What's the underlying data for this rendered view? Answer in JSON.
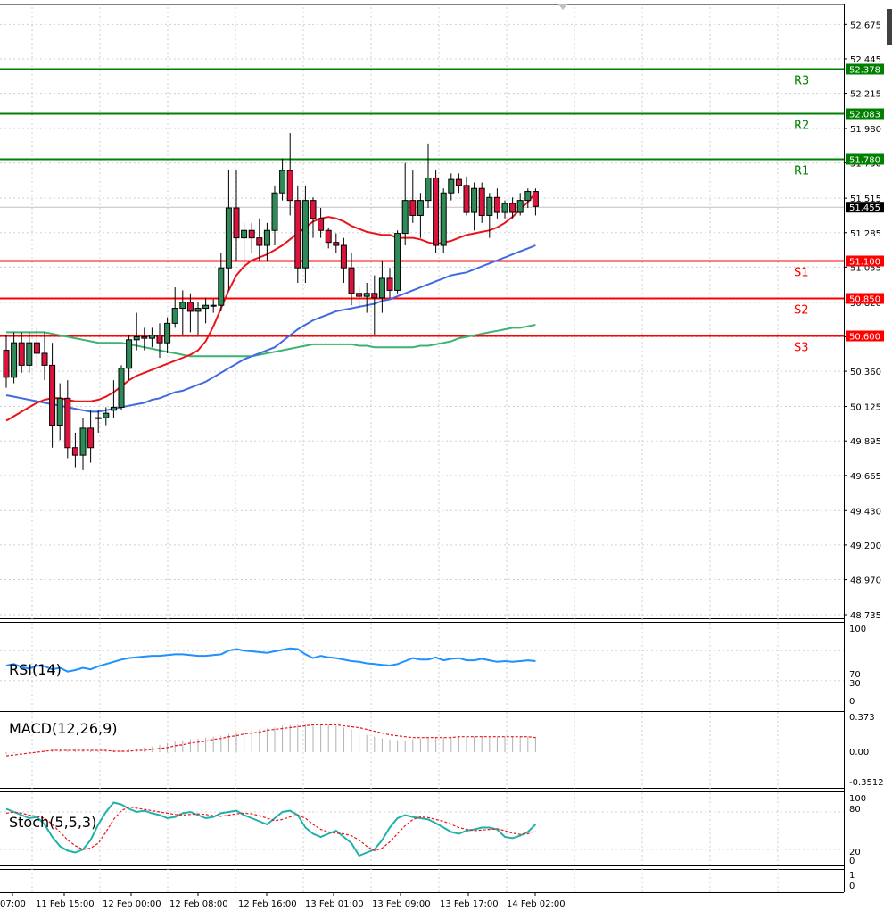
{
  "chart_data": {
    "type": "candlestick",
    "ylim": [
      48.735,
      52.79
    ],
    "y_ticks": [
      "52.675",
      "52.445",
      "52.215",
      "51.980",
      "51.750",
      "51.515",
      "51.285",
      "51.055",
      "50.820",
      "50.590",
      "50.360",
      "50.125",
      "49.895",
      "49.665",
      "49.430",
      "49.200",
      "48.970",
      "48.735"
    ],
    "x_ticks": [
      "07:00",
      "11 Feb 15:00",
      "12 Feb 00:00",
      "12 Feb 08:00",
      "12 Feb 16:00",
      "13 Feb 01:00",
      "13 Feb 09:00",
      "13 Feb 17:00",
      "14 Feb 02:00"
    ],
    "current_price": "51.455",
    "levels": [
      {
        "label": "R3",
        "value": 52.378,
        "value_text": "52.378",
        "color": "#008000"
      },
      {
        "label": "R2",
        "value": 52.083,
        "value_text": "52.083",
        "color": "#008000"
      },
      {
        "label": "R1",
        "value": 51.78,
        "value_text": "51.780",
        "color": "#008000"
      },
      {
        "label": "S1",
        "value": 51.1,
        "value_text": "51.100",
        "color": "#ff0000"
      },
      {
        "label": "S2",
        "value": 50.85,
        "value_text": "50.850",
        "color": "#ff0000"
      },
      {
        "label": "S3",
        "value": 50.6,
        "value_text": "50.600",
        "color": "#ff0000"
      }
    ],
    "candles": [
      [
        50.5,
        50.6,
        50.25,
        50.32
      ],
      [
        50.32,
        50.62,
        50.28,
        50.55
      ],
      [
        50.55,
        50.62,
        50.35,
        50.4
      ],
      [
        50.4,
        50.62,
        50.35,
        50.55
      ],
      [
        50.55,
        50.65,
        50.38,
        50.48
      ],
      [
        50.48,
        50.62,
        50.3,
        50.4
      ],
      [
        50.4,
        50.55,
        49.85,
        50.0
      ],
      [
        50.0,
        50.28,
        49.9,
        50.18
      ],
      [
        50.18,
        50.3,
        49.78,
        49.85
      ],
      [
        49.85,
        49.95,
        49.72,
        49.8
      ],
      [
        49.8,
        50.05,
        49.7,
        49.98
      ],
      [
        49.98,
        50.1,
        49.75,
        49.85
      ],
      [
        50.05,
        50.1,
        49.95,
        50.05
      ],
      [
        50.05,
        50.12,
        50.0,
        50.08
      ],
      [
        50.1,
        50.3,
        50.05,
        50.12
      ],
      [
        50.12,
        50.4,
        50.1,
        50.38
      ],
      [
        50.38,
        50.6,
        50.3,
        50.57
      ],
      [
        50.57,
        50.75,
        50.5,
        50.59
      ],
      [
        50.59,
        50.65,
        50.5,
        50.58
      ],
      [
        50.58,
        50.65,
        50.52,
        50.6
      ],
      [
        50.6,
        50.68,
        50.45,
        50.55
      ],
      [
        50.55,
        50.72,
        50.48,
        50.68
      ],
      [
        50.68,
        50.92,
        50.65,
        50.78
      ],
      [
        50.78,
        50.9,
        50.6,
        50.82
      ],
      [
        50.82,
        50.88,
        50.62,
        50.76
      ],
      [
        50.76,
        50.82,
        50.6,
        50.78
      ],
      [
        50.78,
        50.85,
        50.68,
        50.8
      ],
      [
        50.8,
        50.84,
        50.75,
        50.8
      ],
      [
        50.8,
        51.15,
        50.76,
        51.05
      ],
      [
        51.05,
        51.7,
        50.9,
        51.45
      ],
      [
        51.45,
        51.7,
        51.1,
        51.25
      ],
      [
        51.25,
        51.35,
        51.05,
        51.3
      ],
      [
        51.3,
        51.35,
        51.15,
        51.25
      ],
      [
        51.25,
        51.38,
        51.1,
        51.2
      ],
      [
        51.2,
        51.35,
        51.1,
        51.3
      ],
      [
        51.3,
        51.6,
        51.2,
        51.55
      ],
      [
        51.55,
        51.78,
        51.5,
        51.7
      ],
      [
        51.7,
        51.95,
        51.4,
        51.5
      ],
      [
        51.5,
        51.6,
        50.95,
        51.05
      ],
      [
        51.05,
        51.6,
        50.95,
        51.5
      ],
      [
        51.5,
        51.52,
        51.25,
        51.38
      ],
      [
        51.38,
        51.45,
        51.25,
        51.3
      ],
      [
        51.3,
        51.32,
        51.18,
        51.22
      ],
      [
        51.22,
        51.28,
        51.15,
        51.2
      ],
      [
        51.2,
        51.25,
        50.95,
        51.05
      ],
      [
        51.05,
        51.15,
        50.8,
        50.88
      ],
      [
        50.88,
        50.92,
        50.78,
        50.86
      ],
      [
        50.86,
        50.95,
        50.75,
        50.88
      ],
      [
        50.88,
        51.0,
        50.6,
        50.85
      ],
      [
        50.85,
        51.1,
        50.75,
        50.98
      ],
      [
        50.98,
        51.05,
        50.85,
        50.9
      ],
      [
        50.9,
        51.3,
        50.88,
        51.28
      ],
      [
        51.28,
        51.75,
        51.2,
        51.5
      ],
      [
        51.5,
        51.7,
        51.35,
        51.4
      ],
      [
        51.4,
        51.55,
        51.25,
        51.5
      ],
      [
        51.5,
        51.88,
        51.45,
        51.65
      ],
      [
        51.65,
        51.7,
        51.15,
        51.2
      ],
      [
        51.2,
        51.58,
        51.15,
        51.55
      ],
      [
        51.55,
        51.68,
        51.5,
        51.64
      ],
      [
        51.64,
        51.68,
        51.55,
        51.6
      ],
      [
        51.6,
        51.66,
        51.4,
        51.42
      ],
      [
        51.42,
        51.62,
        51.3,
        51.58
      ],
      [
        51.58,
        51.62,
        51.35,
        51.4
      ],
      [
        51.4,
        51.55,
        51.25,
        51.52
      ],
      [
        51.52,
        51.58,
        51.38,
        51.42
      ],
      [
        51.42,
        51.5,
        51.38,
        51.48
      ],
      [
        51.48,
        51.52,
        51.38,
        51.42
      ],
      [
        51.42,
        51.55,
        51.4,
        51.5
      ],
      [
        51.5,
        51.58,
        51.45,
        51.56
      ],
      [
        51.56,
        51.58,
        51.4,
        51.46
      ]
    ],
    "ma_red": [
      50.03,
      50.06,
      50.09,
      50.12,
      50.15,
      50.17,
      50.18,
      50.18,
      50.17,
      50.16,
      50.16,
      50.16,
      50.17,
      50.19,
      50.22,
      50.26,
      50.3,
      50.33,
      50.35,
      50.37,
      50.39,
      50.41,
      50.43,
      50.45,
      50.47,
      50.5,
      50.56,
      50.66,
      50.78,
      50.9,
      51.0,
      51.06,
      51.1,
      51.12,
      51.14,
      51.17,
      51.2,
      51.24,
      51.28,
      51.32,
      51.36,
      51.38,
      51.39,
      51.38,
      51.36,
      51.33,
      51.31,
      51.29,
      51.28,
      51.27,
      51.27,
      51.25,
      51.25,
      51.25,
      51.24,
      51.22,
      51.21,
      51.22,
      51.23,
      51.25,
      51.27,
      51.28,
      51.29,
      51.3,
      51.32,
      51.35,
      51.39,
      51.44,
      51.49,
      51.55
    ],
    "ma_blue": [
      50.2,
      50.19,
      50.18,
      50.17,
      50.16,
      50.15,
      50.14,
      50.13,
      50.12,
      50.11,
      50.1,
      50.09,
      50.09,
      50.1,
      50.11,
      50.12,
      50.13,
      50.14,
      50.15,
      50.17,
      50.18,
      50.2,
      50.22,
      50.23,
      50.25,
      50.27,
      50.29,
      50.32,
      50.35,
      50.38,
      50.41,
      50.44,
      50.46,
      50.48,
      50.5,
      50.52,
      50.56,
      50.6,
      50.64,
      50.67,
      50.7,
      50.72,
      50.74,
      50.76,
      50.77,
      50.78,
      50.79,
      50.8,
      50.81,
      50.83,
      50.84,
      50.86,
      50.88,
      50.9,
      50.92,
      50.94,
      50.96,
      50.98,
      51.0,
      51.01,
      51.02,
      51.04,
      51.06,
      51.08,
      51.1,
      51.12,
      51.14,
      51.16,
      51.18,
      51.2
    ],
    "ma_green": [
      50.62,
      50.62,
      50.62,
      50.62,
      50.62,
      50.62,
      50.61,
      50.6,
      50.59,
      50.58,
      50.57,
      50.56,
      50.55,
      50.55,
      50.55,
      50.55,
      50.54,
      50.53,
      50.52,
      50.51,
      50.5,
      50.49,
      50.48,
      50.47,
      50.46,
      50.46,
      50.46,
      50.46,
      50.46,
      50.46,
      50.46,
      50.46,
      50.46,
      50.47,
      50.48,
      50.49,
      50.5,
      50.51,
      50.52,
      50.53,
      50.54,
      50.54,
      50.54,
      50.54,
      50.54,
      50.54,
      50.53,
      50.53,
      50.52,
      50.52,
      50.52,
      50.52,
      50.52,
      50.52,
      50.53,
      50.53,
      50.54,
      50.55,
      50.56,
      50.58,
      50.59,
      50.6,
      50.61,
      50.62,
      50.63,
      50.64,
      50.65,
      50.65,
      50.66,
      50.67
    ],
    "rsi": {
      "label": "RSI(14)",
      "ticks": [
        "100",
        "70",
        "30",
        "0"
      ],
      "values": [
        50,
        52,
        48,
        46,
        50,
        49,
        45,
        47,
        42,
        44,
        47,
        45,
        49,
        52,
        55,
        58,
        60,
        61,
        62,
        63,
        63,
        64,
        65,
        65,
        64,
        63,
        63,
        64,
        65,
        70,
        72,
        70,
        69,
        68,
        67,
        69,
        71,
        73,
        72,
        65,
        60,
        63,
        61,
        60,
        58,
        56,
        55,
        53,
        52,
        51,
        50,
        52,
        56,
        60,
        58,
        58,
        61,
        57,
        59,
        60,
        57,
        57,
        59,
        57,
        55,
        56,
        55,
        56,
        57,
        56
      ]
    },
    "macd": {
      "label": "MACD(12,26,9)",
      "ticks": [
        "0.373",
        "0.00",
        "-0.3512"
      ],
      "histogram": [
        -0.02,
        -0.01,
        0.0,
        0.01,
        0.01,
        0.02,
        0.02,
        0.03,
        0.03,
        0.03,
        0.03,
        0.02,
        0.02,
        0.02,
        0.02,
        0.02,
        0.03,
        0.04,
        0.05,
        0.06,
        0.08,
        0.1,
        0.12,
        0.13,
        0.14,
        0.15,
        0.16,
        0.17,
        0.18,
        0.2,
        0.22,
        0.23,
        0.24,
        0.25,
        0.26,
        0.27,
        0.29,
        0.3,
        0.31,
        0.31,
        0.31,
        0.31,
        0.3,
        0.29,
        0.27,
        0.25,
        0.22,
        0.19,
        0.17,
        0.15,
        0.14,
        0.13,
        0.13,
        0.14,
        0.15,
        0.16,
        0.16,
        0.16,
        0.17,
        0.17,
        0.17,
        0.17,
        0.17,
        0.17,
        0.17,
        0.17,
        0.17,
        0.17,
        0.17,
        0.17
      ],
      "signal": [
        -0.04,
        -0.03,
        -0.02,
        -0.01,
        0.0,
        0.01,
        0.02,
        0.02,
        0.02,
        0.02,
        0.02,
        0.02,
        0.02,
        0.02,
        0.01,
        0.01,
        0.01,
        0.02,
        0.02,
        0.03,
        0.04,
        0.05,
        0.07,
        0.08,
        0.1,
        0.11,
        0.12,
        0.14,
        0.15,
        0.17,
        0.18,
        0.2,
        0.21,
        0.22,
        0.24,
        0.25,
        0.26,
        0.27,
        0.28,
        0.29,
        0.3,
        0.3,
        0.3,
        0.3,
        0.29,
        0.28,
        0.27,
        0.25,
        0.23,
        0.21,
        0.19,
        0.18,
        0.17,
        0.16,
        0.16,
        0.16,
        0.16,
        0.16,
        0.16,
        0.17,
        0.17,
        0.17,
        0.17,
        0.17,
        0.17,
        0.17,
        0.17,
        0.17,
        0.17,
        0.16
      ]
    },
    "stoch": {
      "label": "Stoch(5,5,3)",
      "ticks": [
        "100",
        "80",
        "20",
        "0"
      ],
      "main": [
        85,
        80,
        75,
        70,
        72,
        60,
        40,
        25,
        18,
        15,
        20,
        35,
        60,
        80,
        95,
        92,
        85,
        80,
        82,
        78,
        75,
        70,
        72,
        78,
        80,
        75,
        70,
        72,
        78,
        80,
        82,
        75,
        70,
        65,
        60,
        70,
        80,
        82,
        75,
        55,
        45,
        40,
        45,
        50,
        40,
        30,
        10,
        15,
        20,
        35,
        55,
        70,
        75,
        72,
        70,
        68,
        62,
        55,
        48,
        45,
        50,
        52,
        55,
        55,
        52,
        40,
        38,
        42,
        48,
        60
      ],
      "signal": [
        78,
        80,
        78,
        75,
        73,
        70,
        60,
        48,
        35,
        26,
        20,
        22,
        30,
        48,
        68,
        82,
        88,
        86,
        84,
        82,
        80,
        78,
        76,
        75,
        76,
        77,
        76,
        74,
        73,
        75,
        77,
        78,
        77,
        74,
        70,
        66,
        68,
        72,
        75,
        70,
        60,
        52,
        48,
        46,
        45,
        42,
        35,
        25,
        18,
        22,
        32,
        45,
        58,
        68,
        72,
        71,
        68,
        65,
        60,
        55,
        52,
        50,
        51,
        52,
        53,
        50,
        46,
        44,
        45,
        50
      ]
    }
  }
}
